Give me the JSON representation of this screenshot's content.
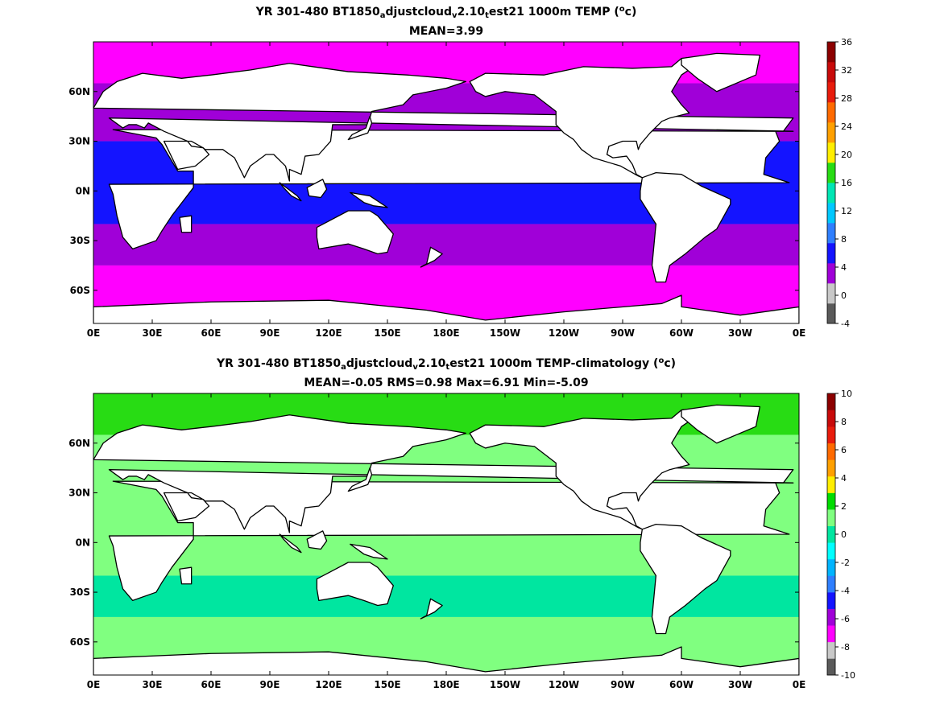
{
  "chart_data": [
    {
      "type": "heatmap",
      "title_parts": {
        "prefix": "YR 301-480 BT1850",
        "sub1": "a",
        "mid1": "djustcloud",
        "sub2": "v",
        "mid2": "2.10",
        "sub3": "t",
        "mid3": "est21 1000m TEMP (",
        "sup": "o",
        "suffix": "c)"
      },
      "subtitle": "MEAN=3.99",
      "x_ticks": [
        "0E",
        "30E",
        "60E",
        "90E",
        "120E",
        "150E",
        "180E",
        "150W",
        "120W",
        "90W",
        "60W",
        "30W",
        "0E"
      ],
      "y_ticks": [
        "60N",
        "30N",
        "0N",
        "30S",
        "60S"
      ],
      "y_tick_values": [
        60,
        30,
        0,
        -30,
        -60
      ],
      "xlim": [
        0,
        360
      ],
      "ylim": [
        -80,
        90
      ],
      "colorbar": {
        "ticks": [
          "36",
          "32",
          "28",
          "24",
          "20",
          "16",
          "12",
          "8",
          "4",
          "0",
          "-4"
        ],
        "levels": [
          -4,
          0,
          2,
          4,
          8,
          12,
          16,
          20,
          24,
          28,
          32,
          36
        ],
        "colors": [
          "#5a5a5a",
          "#c8c8c8",
          "#a000d8",
          "#1414ff",
          "#2f7fff",
          "#00c8ff",
          "#00e6b4",
          "#28dc14",
          "#ffee00",
          "#ffa000",
          "#ff6a00",
          "#e81c0c",
          "#c80a0a",
          "#8c0000"
        ]
      },
      "ocean_bands": [
        {
          "lat_max": 90,
          "lat_min": 65,
          "color": "#ff00ff"
        },
        {
          "lat_max": 65,
          "lat_min": 30,
          "color": "#a000d8"
        },
        {
          "lat_max": 30,
          "lat_min": -20,
          "color": "#1414ff"
        },
        {
          "lat_max": -20,
          "lat_min": -45,
          "color": "#a000d8"
        },
        {
          "lat_max": -45,
          "lat_min": -80,
          "color": "#ff00ff"
        }
      ]
    },
    {
      "type": "heatmap",
      "title_parts": {
        "prefix": "YR 301-480 BT1850",
        "sub1": "a",
        "mid1": "djustcloud",
        "sub2": "v",
        "mid2": "2.10",
        "sub3": "t",
        "mid3": "est21 1000m TEMP-climatology (",
        "sup": "o",
        "suffix": "c)"
      },
      "subtitle": "MEAN=-0.05   RMS=0.98   Max=6.91   Min=-5.09",
      "x_ticks": [
        "0E",
        "30E",
        "60E",
        "90E",
        "120E",
        "150E",
        "180E",
        "150W",
        "120W",
        "90W",
        "60W",
        "30W",
        "0E"
      ],
      "y_ticks": [
        "60N",
        "30N",
        "0N",
        "30S",
        "60S"
      ],
      "y_tick_values": [
        60,
        30,
        0,
        -30,
        -60
      ],
      "xlim": [
        0,
        360
      ],
      "ylim": [
        -80,
        90
      ],
      "colorbar": {
        "ticks": [
          "10",
          "8",
          "6",
          "4",
          "2",
          "0",
          "-2",
          "-4",
          "-6",
          "-8",
          "-10"
        ],
        "colors": [
          "#5a5a5a",
          "#c8c8c8",
          "#ff00ff",
          "#a000d8",
          "#1414ff",
          "#2f7fff",
          "#00b4ff",
          "#00ffff",
          "#00e6a0",
          "#80ff80",
          "#00dc00",
          "#ffee00",
          "#ffa000",
          "#ff6a00",
          "#e81c0c",
          "#c80a0a",
          "#8c0000"
        ]
      },
      "ocean_bands": [
        {
          "lat_max": 90,
          "lat_min": 65,
          "color": "#28dc14"
        },
        {
          "lat_max": 65,
          "lat_min": -20,
          "color": "#80ff80"
        },
        {
          "lat_max": -20,
          "lat_min": -45,
          "color": "#00e6a0"
        },
        {
          "lat_max": -45,
          "lat_min": -80,
          "color": "#80ff80"
        }
      ]
    }
  ]
}
